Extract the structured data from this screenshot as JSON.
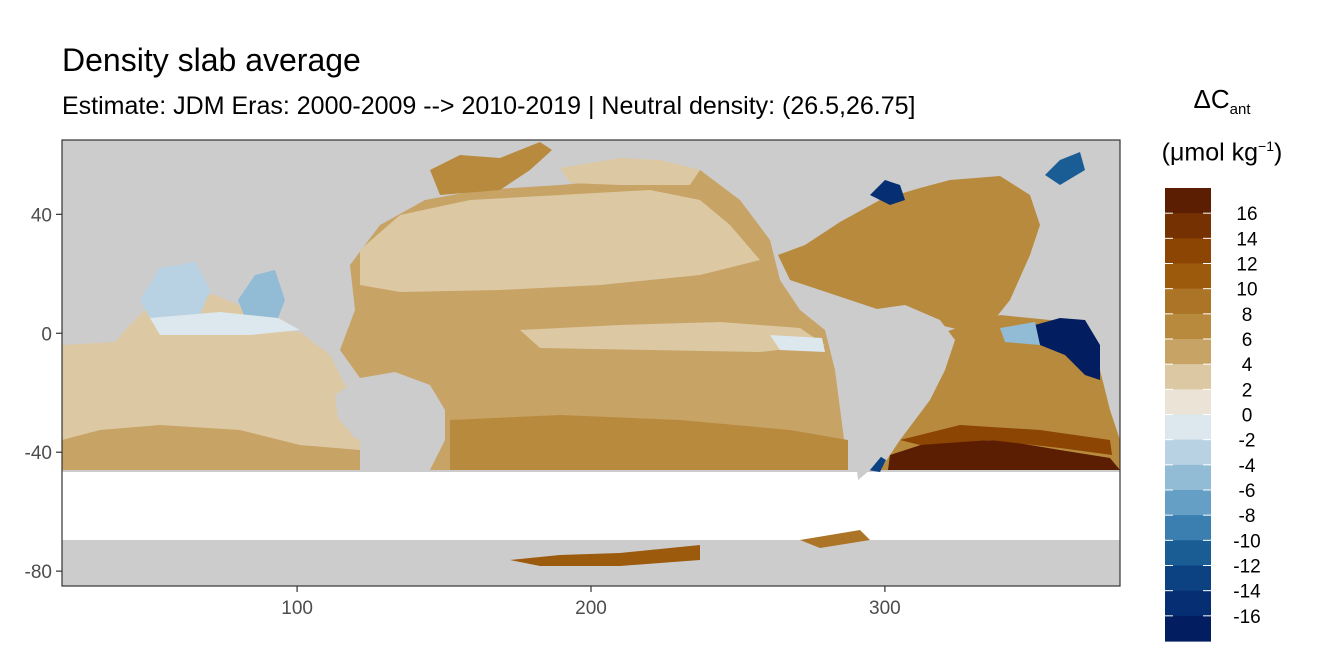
{
  "title": "Density slab average",
  "subtitle": "Estimate: JDM Eras: 2000-2009 --> 2010-2019 | Neutral density: (26.5,26.75]",
  "legend": {
    "title_symbol": "ΔC",
    "title_subscript": "ant",
    "unit_prefix": "(μmol kg",
    "unit_superscript": "−1",
    "unit_suffix": ")",
    "labels": [
      "16",
      "14",
      "12",
      "10",
      "8",
      "6",
      "4",
      "2",
      "0",
      "-2",
      "-4",
      "-6",
      "-8",
      "-10",
      "-12",
      "-14",
      "-16"
    ],
    "colors": [
      "#5c1e02",
      "#763102",
      "#8c4503",
      "#9c5a0d",
      "#ac7426",
      "#b88a3d",
      "#c8a366",
      "#dcc9a3",
      "#ebe3d6",
      "#dde7ee",
      "#b8d2e3",
      "#92bcd6",
      "#659fc6",
      "#3a7fb0",
      "#1a5d95",
      "#0c4282",
      "#062f73",
      "#021d60"
    ]
  },
  "axes": {
    "x_ticks": [
      "100",
      "200",
      "300"
    ],
    "y_ticks": [
      "40",
      "0",
      "-40",
      "-80"
    ],
    "x_values": [
      100,
      200,
      300
    ],
    "y_values": [
      40,
      0,
      -40,
      -80
    ],
    "xlim": [
      20,
      380
    ],
    "ylim": [
      -85,
      65
    ]
  },
  "colors": {
    "land": "#cccccc",
    "missing": "#ffffff",
    "grid": "#ebebeb",
    "frame": "#333333",
    "tick_text": "#4d4d4d"
  }
}
